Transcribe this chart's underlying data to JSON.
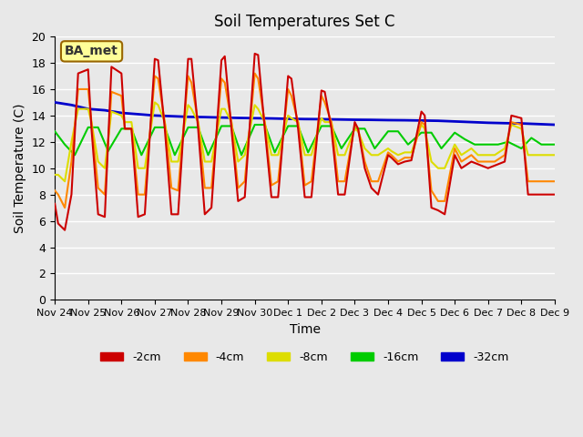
{
  "title": "Soil Temperatures Set C",
  "xlabel": "Time",
  "ylabel": "Soil Temperature (C)",
  "xlim": [
    0,
    15
  ],
  "ylim": [
    0,
    20
  ],
  "yticks": [
    0,
    2,
    4,
    6,
    8,
    10,
    12,
    14,
    16,
    18,
    20
  ],
  "xtick_labels": [
    "Nov 24",
    "Nov 25",
    "Nov 26",
    "Nov 27",
    "Nov 28",
    "Nov 29",
    "Nov 30",
    "Dec 1",
    "Dec 2",
    "Dec 3",
    "Dec 4",
    "Dec 5",
    "Dec 6",
    "Dec 7",
    "Dec 8",
    "Dec 9"
  ],
  "bg_color": "#e8e8e8",
  "plot_bg_color": "#e8e8e8",
  "grid_color": "#ffffff",
  "annotation_text": "BA_met",
  "annotation_box_color": "#ffff99",
  "annotation_box_edge": "#996600",
  "series": {
    "-2cm": {
      "color": "#cc0000",
      "lw": 1.5,
      "data_x": [
        0,
        0.1,
        0.3,
        0.5,
        0.7,
        1.0,
        1.1,
        1.3,
        1.5,
        1.7,
        2.0,
        2.1,
        2.3,
        2.5,
        2.7,
        3.0,
        3.1,
        3.3,
        3.5,
        3.7,
        4.0,
        4.1,
        4.3,
        4.5,
        4.7,
        5.0,
        5.1,
        5.3,
        5.5,
        5.7,
        6.0,
        6.1,
        6.3,
        6.5,
        6.7,
        7.0,
        7.1,
        7.3,
        7.5,
        7.7,
        8.0,
        8.1,
        8.3,
        8.5,
        8.7,
        9.0,
        9.1,
        9.3,
        9.5,
        9.7,
        10.0,
        10.1,
        10.3,
        10.5,
        10.7,
        11.0,
        11.1,
        11.3,
        11.5,
        11.7,
        12.0,
        12.2,
        12.5,
        12.7,
        13.0,
        13.2,
        13.5,
        13.7,
        14.0,
        14.2,
        14.5,
        14.7,
        15.0
      ],
      "data_y": [
        7.3,
        5.8,
        5.3,
        8.0,
        17.2,
        17.5,
        13.0,
        6.5,
        6.3,
        17.7,
        17.2,
        13.0,
        13.0,
        6.3,
        6.5,
        18.3,
        18.2,
        13.0,
        6.5,
        6.5,
        18.3,
        18.3,
        13.0,
        6.5,
        7.0,
        18.2,
        18.5,
        13.0,
        7.5,
        7.8,
        18.7,
        18.6,
        13.0,
        7.8,
        7.8,
        17.0,
        16.8,
        13.0,
        7.8,
        7.8,
        15.9,
        15.8,
        13.0,
        8.0,
        8.0,
        13.5,
        13.0,
        10.0,
        8.5,
        8.0,
        11.0,
        10.8,
        10.3,
        10.5,
        10.6,
        14.3,
        14.0,
        7.0,
        6.8,
        6.5,
        11.0,
        10.0,
        10.5,
        10.3,
        10.0,
        10.2,
        10.5,
        14.0,
        13.8,
        8.0,
        8.0,
        8.0,
        8.0
      ]
    },
    "-4cm": {
      "color": "#ff8800",
      "lw": 1.5,
      "data_x": [
        0,
        0.1,
        0.3,
        0.5,
        0.7,
        1.0,
        1.1,
        1.3,
        1.5,
        1.7,
        2.0,
        2.1,
        2.3,
        2.5,
        2.7,
        3.0,
        3.1,
        3.3,
        3.5,
        3.7,
        4.0,
        4.1,
        4.3,
        4.5,
        4.7,
        5.0,
        5.1,
        5.3,
        5.5,
        5.7,
        6.0,
        6.1,
        6.3,
        6.5,
        6.7,
        7.0,
        7.1,
        7.3,
        7.5,
        7.7,
        8.0,
        8.1,
        8.3,
        8.5,
        8.7,
        9.0,
        9.1,
        9.3,
        9.5,
        9.7,
        10.0,
        10.1,
        10.3,
        10.5,
        10.7,
        11.0,
        11.1,
        11.3,
        11.5,
        11.7,
        12.0,
        12.2,
        12.5,
        12.7,
        13.0,
        13.2,
        13.5,
        13.7,
        14.0,
        14.2,
        14.5,
        14.7,
        15.0
      ],
      "data_y": [
        8.3,
        8.0,
        7.0,
        10.5,
        16.0,
        16.0,
        13.5,
        8.5,
        8.0,
        15.8,
        15.5,
        13.0,
        13.0,
        8.0,
        8.0,
        17.0,
        16.8,
        13.5,
        8.5,
        8.3,
        17.0,
        16.5,
        13.5,
        8.5,
        8.5,
        16.8,
        16.5,
        13.5,
        8.5,
        9.0,
        17.2,
        16.8,
        13.5,
        8.7,
        9.0,
        16.0,
        15.5,
        13.5,
        8.7,
        9.0,
        15.5,
        15.0,
        13.5,
        9.0,
        9.0,
        13.3,
        13.0,
        10.5,
        9.0,
        9.0,
        11.2,
        11.0,
        10.5,
        10.8,
        10.8,
        13.5,
        13.3,
        8.3,
        7.5,
        7.5,
        11.5,
        10.5,
        11.0,
        10.5,
        10.5,
        10.5,
        11.0,
        13.5,
        13.3,
        9.0,
        9.0,
        9.0,
        9.0
      ]
    },
    "-8cm": {
      "color": "#dddd00",
      "lw": 1.5,
      "data_x": [
        0,
        0.1,
        0.3,
        0.5,
        0.7,
        1.0,
        1.1,
        1.3,
        1.5,
        1.7,
        2.0,
        2.1,
        2.3,
        2.5,
        2.7,
        3.0,
        3.1,
        3.3,
        3.5,
        3.7,
        4.0,
        4.1,
        4.3,
        4.5,
        4.7,
        5.0,
        5.1,
        5.3,
        5.5,
        5.7,
        6.0,
        6.1,
        6.3,
        6.5,
        6.7,
        7.0,
        7.1,
        7.3,
        7.5,
        7.7,
        8.0,
        8.1,
        8.3,
        8.5,
        8.7,
        9.0,
        9.1,
        9.3,
        9.5,
        9.7,
        10.0,
        10.1,
        10.3,
        10.5,
        10.7,
        11.0,
        11.1,
        11.3,
        11.5,
        11.7,
        12.0,
        12.2,
        12.5,
        12.7,
        13.0,
        13.2,
        13.5,
        13.7,
        14.0,
        14.2,
        14.5,
        14.7,
        15.0
      ],
      "data_y": [
        9.5,
        9.5,
        9.0,
        12.0,
        14.5,
        14.5,
        13.5,
        10.5,
        10.0,
        14.3,
        14.0,
        13.5,
        13.5,
        10.0,
        10.0,
        15.0,
        14.8,
        13.5,
        10.5,
        10.5,
        14.8,
        14.5,
        13.5,
        10.5,
        10.5,
        14.5,
        14.5,
        13.5,
        10.5,
        11.0,
        14.8,
        14.5,
        13.5,
        11.0,
        11.0,
        14.0,
        13.8,
        13.5,
        11.0,
        11.0,
        13.8,
        13.5,
        13.5,
        11.0,
        11.0,
        13.0,
        12.8,
        11.5,
        11.0,
        11.0,
        11.5,
        11.3,
        11.0,
        11.2,
        11.2,
        13.3,
        13.0,
        10.5,
        10.0,
        10.0,
        11.8,
        11.0,
        11.5,
        11.0,
        11.0,
        11.0,
        11.5,
        13.3,
        13.0,
        11.0,
        11.0,
        11.0,
        11.0
      ]
    },
    "-16cm": {
      "color": "#00cc00",
      "lw": 1.5,
      "data_x": [
        0,
        0.3,
        0.6,
        1.0,
        1.3,
        1.6,
        2.0,
        2.3,
        2.6,
        3.0,
        3.3,
        3.6,
        4.0,
        4.3,
        4.6,
        5.0,
        5.3,
        5.6,
        6.0,
        6.3,
        6.6,
        7.0,
        7.3,
        7.6,
        8.0,
        8.3,
        8.6,
        9.0,
        9.3,
        9.6,
        10.0,
        10.3,
        10.6,
        11.0,
        11.3,
        11.6,
        12.0,
        12.3,
        12.6,
        13.0,
        13.3,
        13.6,
        14.0,
        14.3,
        14.6,
        15.0
      ],
      "data_y": [
        12.8,
        11.8,
        11.0,
        13.1,
        13.1,
        11.3,
        13.0,
        13.0,
        11.0,
        13.1,
        13.1,
        11.0,
        13.1,
        13.1,
        11.0,
        13.2,
        13.2,
        11.0,
        13.3,
        13.3,
        11.2,
        13.2,
        13.2,
        11.2,
        13.2,
        13.2,
        11.5,
        13.0,
        13.0,
        11.5,
        12.8,
        12.8,
        11.8,
        12.7,
        12.7,
        11.5,
        12.7,
        12.2,
        11.8,
        11.8,
        11.8,
        12.0,
        11.5,
        12.3,
        11.8,
        11.8
      ]
    },
    "-32cm": {
      "color": "#0000cc",
      "lw": 2.0,
      "data_x": [
        0,
        0.5,
        1.0,
        1.5,
        2.0,
        2.5,
        3.0,
        3.5,
        4.0,
        4.5,
        5.0,
        5.5,
        6.0,
        6.5,
        7.0,
        7.5,
        8.0,
        8.5,
        9.0,
        9.5,
        10.0,
        10.5,
        11.0,
        11.5,
        12.0,
        12.5,
        13.0,
        13.5,
        14.0,
        14.5,
        15.0
      ],
      "data_y": [
        15.0,
        14.8,
        14.5,
        14.4,
        14.2,
        14.1,
        14.0,
        13.95,
        13.9,
        13.88,
        13.85,
        13.82,
        13.8,
        13.78,
        13.75,
        13.73,
        13.72,
        13.7,
        13.68,
        13.67,
        13.65,
        13.64,
        13.62,
        13.6,
        13.55,
        13.5,
        13.45,
        13.42,
        13.4,
        13.35,
        13.3
      ]
    }
  }
}
